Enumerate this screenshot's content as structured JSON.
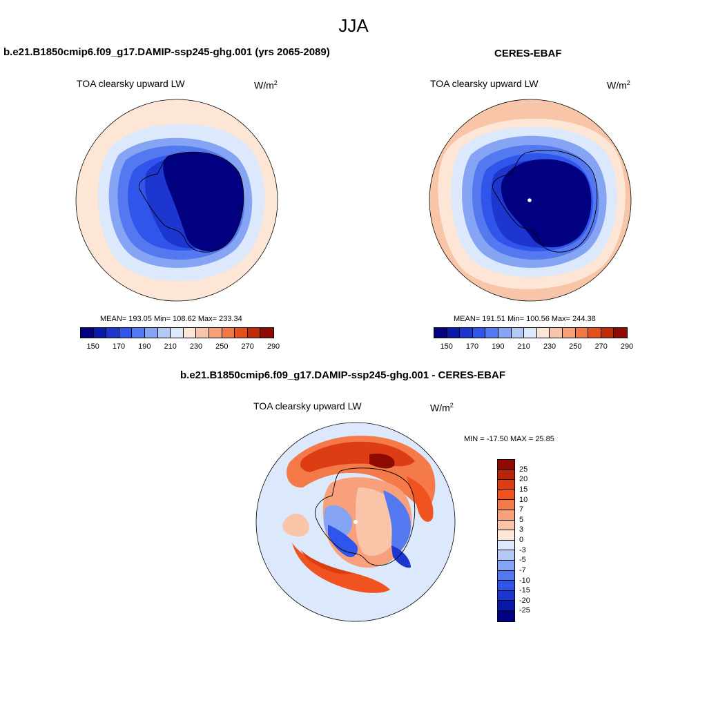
{
  "season": "JJA",
  "panels": {
    "model": {
      "title": "b.e21.B1850cmip6.f09_g17.DAMIP-ssp245-ghg.001 (yrs 2065-2089)",
      "variable": "TOA clearsky upward LW",
      "units_base": "W/m",
      "units_exp": "2",
      "stats": "MEAN= 193.05  Min= 108.62  Max= 233.34"
    },
    "obs": {
      "title": "CERES-EBAF",
      "variable": "TOA clearsky upward LW",
      "units_base": "W/m",
      "units_exp": "2",
      "stats": "MEAN= 191.51  Min= 100.56  Max= 244.38"
    },
    "diff": {
      "title": "b.e21.B1850cmip6.f09_g17.DAMIP-ssp245-ghg.001 - CERES-EBAF",
      "variable": "TOA clearsky upward LW",
      "units_base": "W/m",
      "units_exp": "2",
      "stats": "MIN = -17.50 MAX =  25.85"
    }
  },
  "colorbar_abs": {
    "ticks": [
      "150",
      "170",
      "190",
      "210",
      "230",
      "250",
      "270",
      "290"
    ],
    "colors": [
      "#000080",
      "#0a1aa6",
      "#1c36cf",
      "#2f55ea",
      "#5478ef",
      "#86a4f4",
      "#b4c8f8",
      "#dce8fb",
      "#fde6d6",
      "#f8c5a8",
      "#f6a078",
      "#f27845",
      "#e3501c",
      "#c22b08",
      "#8f0a00"
    ]
  },
  "colorbar_diff": {
    "ticks": [
      "25",
      "20",
      "15",
      "10",
      "7",
      "5",
      "3",
      "0",
      "-3",
      "-5",
      "-7",
      "-10",
      "-15",
      "-20",
      "-25"
    ],
    "colors": [
      "#8f0a00",
      "#b82406",
      "#dc3d12",
      "#f0531f",
      "#f47a4a",
      "#f7a07b",
      "#fac4a9",
      "#fde6d6",
      "#dce8fb",
      "#b4c8f8",
      "#86a4f4",
      "#5478ef",
      "#2f55ea",
      "#1c36cf",
      "#0a1aa6",
      "#000080"
    ]
  }
}
